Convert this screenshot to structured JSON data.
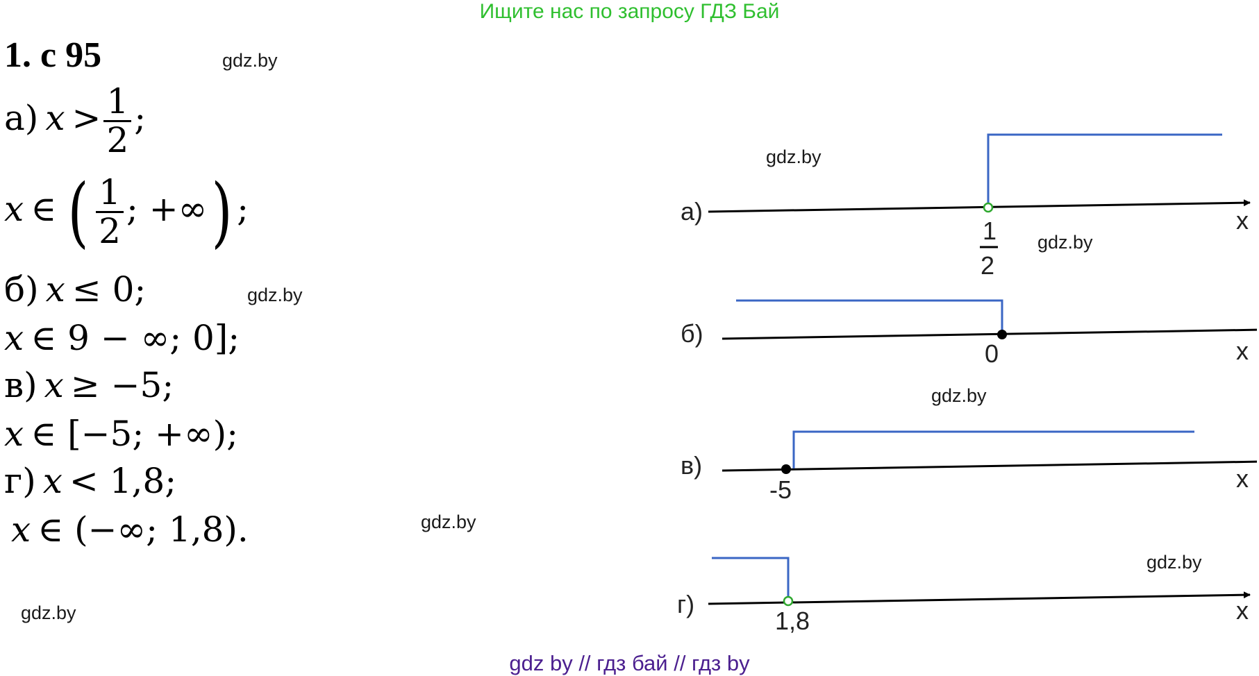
{
  "banner": "Ищите нас по запросу ГДЗ Бай",
  "title": "1. с 95",
  "watermarks": [
    "gdz.by",
    "gdz.by",
    "gdz.by",
    "gdz.by",
    "gdz.by",
    "gdz.by",
    "gdz.by",
    "gdz.by"
  ],
  "math": {
    "a_label": "а)",
    "a_var": "x",
    "a_op": ">",
    "a_num": "1",
    "a_den": "2",
    "a_end": ";",
    "a2_var": "x",
    "a2_in": "∈",
    "a2_num": "1",
    "a2_den": "2",
    "a2_rest": "; +∞",
    "a2_end": ";",
    "b_label": "б)",
    "b_var": "x",
    "b_rest": "≤ 0;",
    "b2_var": "x",
    "b2_rest": "∈ 9 − ∞; 0];",
    "c_label": "в)",
    "c_var": "x",
    "c_rest": "≥ −5;",
    "c2_var": "x",
    "c2_rest": "∈ [−5; +∞);",
    "d_label": "г)",
    "d_var": "x",
    "d_rest": "< 1,8;",
    "d2_var": "x",
    "d2_rest": "∈ (−∞; 1,8)."
  },
  "numberlines": [
    {
      "label": "а)",
      "point": "1/2",
      "point_num": "1",
      "point_den": "2",
      "axis": "x",
      "filled": false,
      "direction": "right"
    },
    {
      "label": "б)",
      "point": "0",
      "axis": "x",
      "filled": true,
      "direction": "left"
    },
    {
      "label": "в)",
      "point": "-5",
      "axis": "x",
      "filled": true,
      "direction": "right"
    },
    {
      "label": "г)",
      "point": "1,8",
      "axis": "x",
      "filled": false,
      "direction": "left"
    }
  ],
  "colors": {
    "banner": "#2fbf2f",
    "footer": "#4b1f8f",
    "shade": "#3a66c4",
    "open_point": "#2fa82f"
  },
  "footer": "gdz by  //  гдз бай  //  гдз by"
}
